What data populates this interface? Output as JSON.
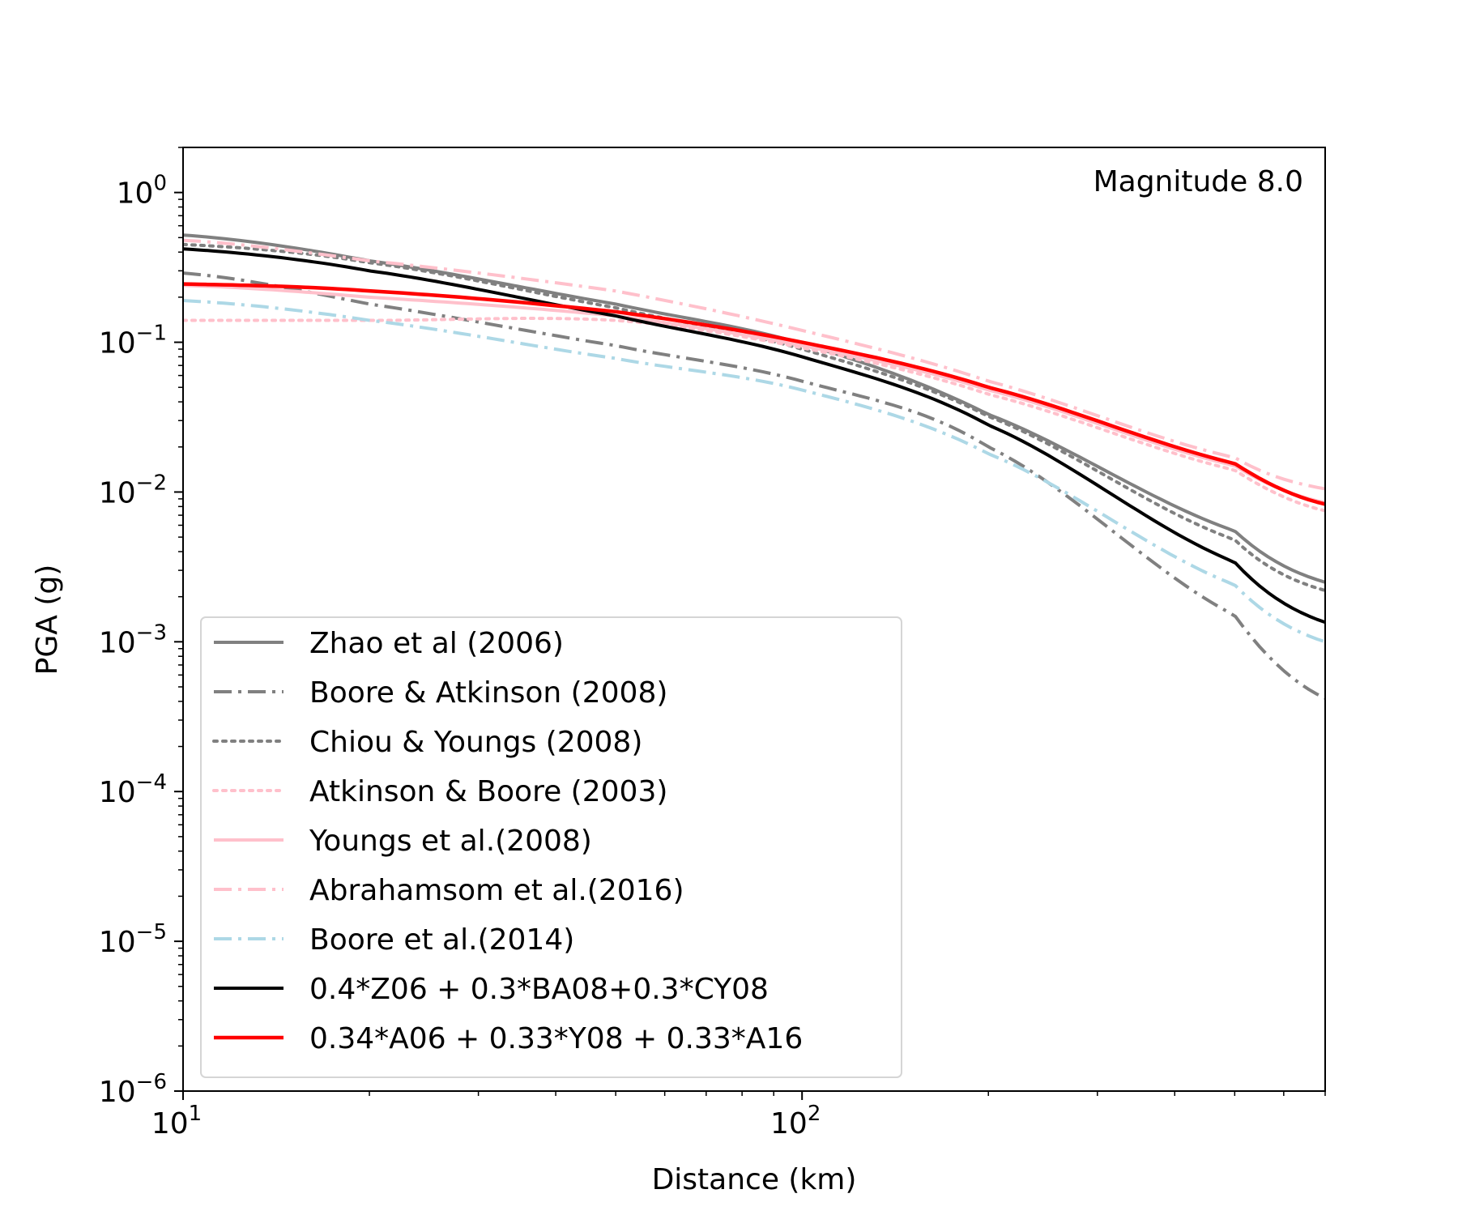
{
  "chart_data": {
    "type": "line",
    "annotation": "Magnitude 8.0",
    "xlabel": "Distance (km)",
    "ylabel": "PGA (g)",
    "xscale": "log",
    "yscale": "log",
    "xlim": [
      10,
      700
    ],
    "ylim": [
      1e-06,
      2
    ],
    "xticks": [
      {
        "base": "10",
        "exp": "1",
        "value": 10
      },
      {
        "base": "10",
        "exp": "2",
        "value": 100
      }
    ],
    "yticks": [
      {
        "base": "10",
        "exp": "0",
        "value": 1
      },
      {
        "base": "10",
        "exp": "−1",
        "value": 0.1
      },
      {
        "base": "10",
        "exp": "−2",
        "value": 0.01
      },
      {
        "base": "10",
        "exp": "−3",
        "value": 0.001
      },
      {
        "base": "10",
        "exp": "−4",
        "value": 0.0001
      },
      {
        "base": "10",
        "exp": "−5",
        "value": 1e-05
      },
      {
        "base": "10",
        "exp": "−6",
        "value": 1e-06
      }
    ],
    "grid": false,
    "legend_position": "lower-left",
    "x": [
      10,
      20,
      50,
      100,
      200,
      500,
      700
    ],
    "series": [
      {
        "name": "Zhao et al (2006)",
        "color": "#808080",
        "style": "solid",
        "values": [
          0.52,
          0.35,
          0.18,
          0.098,
          0.033,
          0.0055,
          0.0025
        ]
      },
      {
        "name": "Boore & Atkinson (2008)",
        "color": "#808080",
        "style": "dashdot",
        "values": [
          0.29,
          0.18,
          0.095,
          0.055,
          0.02,
          0.0015,
          0.00042
        ]
      },
      {
        "name": "Chiou & Youngs (2008)",
        "color": "#808080",
        "style": "dotted",
        "values": [
          0.45,
          0.34,
          0.17,
          0.09,
          0.032,
          0.0048,
          0.0022
        ]
      },
      {
        "name": "Atkinson & Boore (2003)",
        "color": "#ffc0cb",
        "style": "dotted",
        "values": [
          0.14,
          0.14,
          0.14,
          0.092,
          0.045,
          0.014,
          0.0075
        ]
      },
      {
        "name": "Youngs et al.(2008)",
        "color": "#ffc0cb",
        "style": "solid",
        "values": [
          0.24,
          0.2,
          0.15,
          0.095,
          0.048,
          0.015,
          0.0085
        ]
      },
      {
        "name": "Abrahamsom et al.(2016)",
        "color": "#ffc0cb",
        "style": "dashdot",
        "values": [
          0.48,
          0.35,
          0.22,
          0.12,
          0.055,
          0.017,
          0.0105
        ]
      },
      {
        "name": "Boore et al.(2014)",
        "color": "#add8e6",
        "style": "dashdot",
        "values": [
          0.19,
          0.14,
          0.078,
          0.048,
          0.018,
          0.0024,
          0.001
        ]
      },
      {
        "name": "0.4*Z06 + 0.3*BA08+0.3*CY08",
        "color": "#000000",
        "style": "solid",
        "values": [
          0.42,
          0.3,
          0.15,
          0.08,
          0.028,
          0.0034,
          0.00135
        ]
      },
      {
        "name": "0.34*A06 + 0.33*Y08 + 0.33*A16",
        "color": "#ff0000",
        "style": "solid",
        "values": [
          0.245,
          0.22,
          0.16,
          0.1,
          0.05,
          0.0155,
          0.0083
        ]
      }
    ]
  }
}
